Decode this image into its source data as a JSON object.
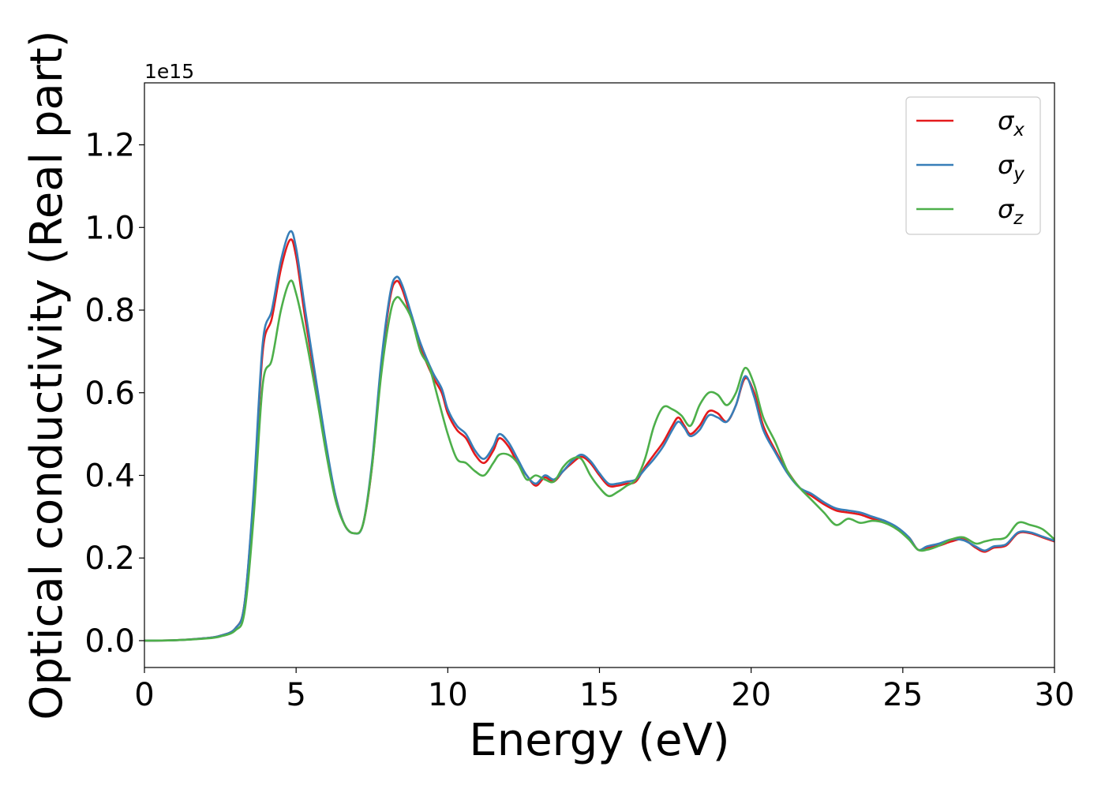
{
  "chart_data": {
    "type": "line",
    "title": "",
    "xlabel": "Energy (eV)",
    "ylabel": "Optical conductivity (Real part)",
    "y_offset_label": "1e15",
    "xlim": [
      0,
      30
    ],
    "ylim": [
      -0.065,
      1.35
    ],
    "x_ticks": [
      0,
      5,
      10,
      15,
      20,
      25,
      30
    ],
    "x_tick_labels": [
      "0",
      "5",
      "10",
      "15",
      "20",
      "25",
      "30"
    ],
    "y_ticks": [
      0.0,
      0.2,
      0.4,
      0.6,
      0.8,
      1.0,
      1.2
    ],
    "y_tick_labels": [
      "0.0",
      "0.2",
      "0.4",
      "0.6",
      "0.8",
      "1.0",
      "1.2"
    ],
    "grid": false,
    "legend_position": "top-right",
    "series": [
      {
        "name": "σx",
        "legend_symbol": "σ",
        "legend_subscript": "x",
        "color": "#e41a1c",
        "points": [
          [
            0,
            0.0
          ],
          [
            1,
            0.001
          ],
          [
            2,
            0.006
          ],
          [
            2.5,
            0.012
          ],
          [
            3,
            0.03
          ],
          [
            3.3,
            0.09
          ],
          [
            3.6,
            0.35
          ],
          [
            3.9,
            0.7
          ],
          [
            4.2,
            0.78
          ],
          [
            4.5,
            0.9
          ],
          [
            4.8,
            0.97
          ],
          [
            5.0,
            0.93
          ],
          [
            5.3,
            0.78
          ],
          [
            5.7,
            0.6
          ],
          [
            6.0,
            0.46
          ],
          [
            6.3,
            0.35
          ],
          [
            6.6,
            0.28
          ],
          [
            6.9,
            0.26
          ],
          [
            7.2,
            0.28
          ],
          [
            7.5,
            0.42
          ],
          [
            7.8,
            0.66
          ],
          [
            8.1,
            0.83
          ],
          [
            8.3,
            0.87
          ],
          [
            8.5,
            0.85
          ],
          [
            8.8,
            0.78
          ],
          [
            9.1,
            0.71
          ],
          [
            9.5,
            0.64
          ],
          [
            9.8,
            0.6
          ],
          [
            10.0,
            0.55
          ],
          [
            10.3,
            0.51
          ],
          [
            10.6,
            0.49
          ],
          [
            10.9,
            0.45
          ],
          [
            11.2,
            0.43
          ],
          [
            11.5,
            0.46
          ],
          [
            11.7,
            0.49
          ],
          [
            12.0,
            0.47
          ],
          [
            12.3,
            0.43
          ],
          [
            12.6,
            0.4
          ],
          [
            12.9,
            0.375
          ],
          [
            13.2,
            0.395
          ],
          [
            13.5,
            0.385
          ],
          [
            13.8,
            0.41
          ],
          [
            14.1,
            0.43
          ],
          [
            14.4,
            0.445
          ],
          [
            14.7,
            0.43
          ],
          [
            15.0,
            0.4
          ],
          [
            15.3,
            0.375
          ],
          [
            15.6,
            0.375
          ],
          [
            15.9,
            0.38
          ],
          [
            16.2,
            0.385
          ],
          [
            16.5,
            0.42
          ],
          [
            16.8,
            0.45
          ],
          [
            17.1,
            0.48
          ],
          [
            17.4,
            0.52
          ],
          [
            17.6,
            0.54
          ],
          [
            17.8,
            0.52
          ],
          [
            18.0,
            0.5
          ],
          [
            18.3,
            0.52
          ],
          [
            18.6,
            0.555
          ],
          [
            18.9,
            0.55
          ],
          [
            19.2,
            0.53
          ],
          [
            19.5,
            0.57
          ],
          [
            19.8,
            0.635
          ],
          [
            20.1,
            0.6
          ],
          [
            20.4,
            0.52
          ],
          [
            20.8,
            0.46
          ],
          [
            21.2,
            0.41
          ],
          [
            21.6,
            0.37
          ],
          [
            22.0,
            0.35
          ],
          [
            22.4,
            0.33
          ],
          [
            22.8,
            0.315
          ],
          [
            23.2,
            0.31
          ],
          [
            23.6,
            0.305
          ],
          [
            24.0,
            0.295
          ],
          [
            24.4,
            0.29
          ],
          [
            24.8,
            0.27
          ],
          [
            25.2,
            0.25
          ],
          [
            25.5,
            0.22
          ],
          [
            25.8,
            0.225
          ],
          [
            26.2,
            0.23
          ],
          [
            26.6,
            0.24
          ],
          [
            27.0,
            0.245
          ],
          [
            27.4,
            0.225
          ],
          [
            27.7,
            0.215
          ],
          [
            28.0,
            0.225
          ],
          [
            28.4,
            0.23
          ],
          [
            28.8,
            0.26
          ],
          [
            29.2,
            0.26
          ],
          [
            29.6,
            0.25
          ],
          [
            30.0,
            0.24
          ]
        ]
      },
      {
        "name": "σy",
        "legend_symbol": "σ",
        "legend_subscript": "y",
        "color": "#377eb8",
        "points": [
          [
            0,
            0.0
          ],
          [
            1,
            0.001
          ],
          [
            2,
            0.006
          ],
          [
            2.5,
            0.012
          ],
          [
            3,
            0.03
          ],
          [
            3.3,
            0.09
          ],
          [
            3.6,
            0.36
          ],
          [
            3.9,
            0.72
          ],
          [
            4.2,
            0.8
          ],
          [
            4.5,
            0.92
          ],
          [
            4.8,
            0.99
          ],
          [
            5.0,
            0.95
          ],
          [
            5.3,
            0.8
          ],
          [
            5.7,
            0.61
          ],
          [
            6.0,
            0.47
          ],
          [
            6.3,
            0.35
          ],
          [
            6.6,
            0.28
          ],
          [
            6.9,
            0.26
          ],
          [
            7.2,
            0.28
          ],
          [
            7.5,
            0.43
          ],
          [
            7.8,
            0.67
          ],
          [
            8.1,
            0.84
          ],
          [
            8.3,
            0.88
          ],
          [
            8.5,
            0.86
          ],
          [
            8.8,
            0.79
          ],
          [
            9.1,
            0.72
          ],
          [
            9.5,
            0.65
          ],
          [
            9.8,
            0.61
          ],
          [
            10.0,
            0.56
          ],
          [
            10.3,
            0.52
          ],
          [
            10.6,
            0.5
          ],
          [
            10.9,
            0.46
          ],
          [
            11.2,
            0.44
          ],
          [
            11.5,
            0.47
          ],
          [
            11.7,
            0.5
          ],
          [
            12.0,
            0.48
          ],
          [
            12.3,
            0.44
          ],
          [
            12.6,
            0.4
          ],
          [
            12.9,
            0.38
          ],
          [
            13.2,
            0.4
          ],
          [
            13.5,
            0.39
          ],
          [
            13.8,
            0.41
          ],
          [
            14.1,
            0.435
          ],
          [
            14.4,
            0.45
          ],
          [
            14.7,
            0.435
          ],
          [
            15.0,
            0.405
          ],
          [
            15.3,
            0.38
          ],
          [
            15.6,
            0.38
          ],
          [
            15.9,
            0.385
          ],
          [
            16.2,
            0.39
          ],
          [
            16.5,
            0.415
          ],
          [
            16.8,
            0.44
          ],
          [
            17.1,
            0.47
          ],
          [
            17.4,
            0.51
          ],
          [
            17.6,
            0.53
          ],
          [
            17.8,
            0.515
          ],
          [
            18.0,
            0.495
          ],
          [
            18.3,
            0.51
          ],
          [
            18.6,
            0.545
          ],
          [
            18.9,
            0.54
          ],
          [
            19.2,
            0.53
          ],
          [
            19.5,
            0.57
          ],
          [
            19.8,
            0.64
          ],
          [
            20.1,
            0.59
          ],
          [
            20.4,
            0.51
          ],
          [
            20.8,
            0.455
          ],
          [
            21.2,
            0.405
          ],
          [
            21.6,
            0.37
          ],
          [
            22.0,
            0.355
          ],
          [
            22.4,
            0.335
          ],
          [
            22.8,
            0.32
          ],
          [
            23.2,
            0.315
          ],
          [
            23.6,
            0.31
          ],
          [
            24.0,
            0.3
          ],
          [
            24.4,
            0.29
          ],
          [
            24.8,
            0.275
          ],
          [
            25.2,
            0.25
          ],
          [
            25.5,
            0.22
          ],
          [
            25.8,
            0.228
          ],
          [
            26.2,
            0.235
          ],
          [
            26.6,
            0.245
          ],
          [
            27.0,
            0.243
          ],
          [
            27.4,
            0.228
          ],
          [
            27.7,
            0.218
          ],
          [
            28.0,
            0.228
          ],
          [
            28.4,
            0.233
          ],
          [
            28.8,
            0.262
          ],
          [
            29.2,
            0.262
          ],
          [
            29.6,
            0.252
          ],
          [
            30.0,
            0.242
          ]
        ]
      },
      {
        "name": "σz",
        "legend_symbol": "σ",
        "legend_subscript": "z",
        "color": "#4daf4a",
        "points": [
          [
            0,
            0.0
          ],
          [
            1,
            0.001
          ],
          [
            2,
            0.005
          ],
          [
            2.5,
            0.01
          ],
          [
            3,
            0.025
          ],
          [
            3.3,
            0.07
          ],
          [
            3.6,
            0.3
          ],
          [
            3.9,
            0.62
          ],
          [
            4.2,
            0.68
          ],
          [
            4.5,
            0.8
          ],
          [
            4.8,
            0.87
          ],
          [
            5.0,
            0.84
          ],
          [
            5.3,
            0.74
          ],
          [
            5.7,
            0.58
          ],
          [
            6.0,
            0.45
          ],
          [
            6.3,
            0.34
          ],
          [
            6.6,
            0.28
          ],
          [
            6.9,
            0.26
          ],
          [
            7.2,
            0.28
          ],
          [
            7.5,
            0.42
          ],
          [
            7.8,
            0.64
          ],
          [
            8.1,
            0.79
          ],
          [
            8.3,
            0.83
          ],
          [
            8.5,
            0.82
          ],
          [
            8.8,
            0.78
          ],
          [
            9.1,
            0.7
          ],
          [
            9.4,
            0.66
          ],
          [
            9.7,
            0.58
          ],
          [
            10.0,
            0.5
          ],
          [
            10.3,
            0.44
          ],
          [
            10.6,
            0.43
          ],
          [
            10.9,
            0.41
          ],
          [
            11.2,
            0.4
          ],
          [
            11.5,
            0.43
          ],
          [
            11.7,
            0.45
          ],
          [
            12.0,
            0.45
          ],
          [
            12.3,
            0.43
          ],
          [
            12.6,
            0.39
          ],
          [
            12.9,
            0.4
          ],
          [
            13.2,
            0.39
          ],
          [
            13.5,
            0.385
          ],
          [
            13.8,
            0.42
          ],
          [
            14.1,
            0.44
          ],
          [
            14.4,
            0.44
          ],
          [
            14.7,
            0.4
          ],
          [
            15.0,
            0.37
          ],
          [
            15.3,
            0.35
          ],
          [
            15.6,
            0.36
          ],
          [
            15.9,
            0.375
          ],
          [
            16.2,
            0.39
          ],
          [
            16.5,
            0.44
          ],
          [
            16.8,
            0.52
          ],
          [
            17.1,
            0.565
          ],
          [
            17.4,
            0.56
          ],
          [
            17.7,
            0.545
          ],
          [
            18.0,
            0.52
          ],
          [
            18.3,
            0.57
          ],
          [
            18.6,
            0.6
          ],
          [
            18.9,
            0.595
          ],
          [
            19.2,
            0.57
          ],
          [
            19.5,
            0.6
          ],
          [
            19.8,
            0.66
          ],
          [
            20.1,
            0.62
          ],
          [
            20.4,
            0.54
          ],
          [
            20.8,
            0.48
          ],
          [
            21.2,
            0.41
          ],
          [
            21.6,
            0.37
          ],
          [
            22.0,
            0.34
          ],
          [
            22.4,
            0.31
          ],
          [
            22.8,
            0.28
          ],
          [
            23.2,
            0.295
          ],
          [
            23.6,
            0.285
          ],
          [
            24.0,
            0.29
          ],
          [
            24.4,
            0.285
          ],
          [
            24.8,
            0.27
          ],
          [
            25.2,
            0.245
          ],
          [
            25.5,
            0.22
          ],
          [
            25.8,
            0.22
          ],
          [
            26.2,
            0.23
          ],
          [
            26.6,
            0.245
          ],
          [
            27.0,
            0.25
          ],
          [
            27.4,
            0.235
          ],
          [
            27.7,
            0.24
          ],
          [
            28.0,
            0.245
          ],
          [
            28.4,
            0.25
          ],
          [
            28.8,
            0.285
          ],
          [
            29.2,
            0.28
          ],
          [
            29.6,
            0.27
          ],
          [
            30.0,
            0.245
          ]
        ]
      }
    ]
  }
}
